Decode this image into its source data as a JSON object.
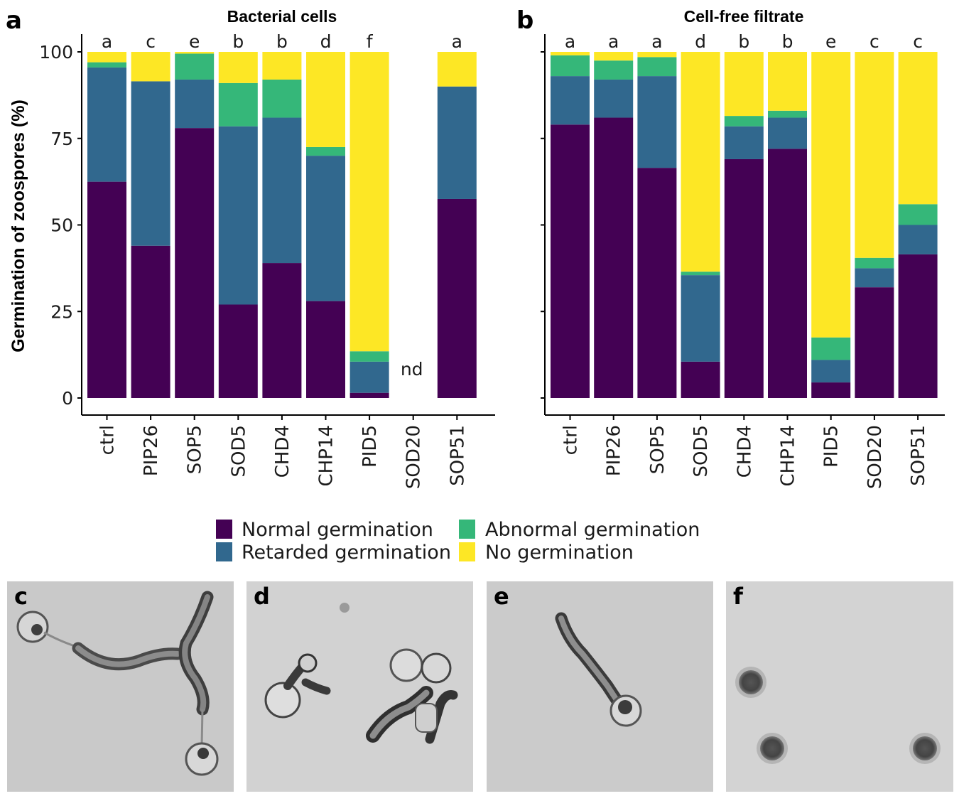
{
  "colors": {
    "normal": "#440154",
    "retarded": "#31688E",
    "abnormal": "#35B779",
    "none": "#FDE725"
  },
  "ylabel": "Germination of zoospores (%)",
  "legend": {
    "items": [
      {
        "key": "normal",
        "label": "Normal germination"
      },
      {
        "key": "abnormal",
        "label": "Abnormal germination"
      },
      {
        "key": "retarded",
        "label": "Retarded germination"
      },
      {
        "key": "none",
        "label": "No germination"
      }
    ]
  },
  "micrographs": [
    {
      "letter": "c"
    },
    {
      "letter": "d"
    },
    {
      "letter": "e"
    },
    {
      "letter": "f"
    }
  ],
  "chart_data": [
    {
      "type": "bar",
      "stacked": true,
      "panel": "a",
      "title": "Bacterial cells",
      "ylabel": "Germination of zoospores (%)",
      "ylim": [
        0,
        100
      ],
      "yticks": [
        0,
        25,
        50,
        75,
        100
      ],
      "categories": [
        "ctrl",
        "PIP26",
        "SOP5",
        "SOD5",
        "CHD4",
        "CHP14",
        "PID5",
        "SOD20",
        "SOP51"
      ],
      "significance": [
        "a",
        "c",
        "e",
        "b",
        "b",
        "d",
        "f",
        "",
        "a"
      ],
      "annotations": [
        {
          "category": "SOD20",
          "text": "nd"
        }
      ],
      "series": [
        {
          "name": "Normal germination",
          "key": "normal",
          "values": [
            62.5,
            44,
            78,
            27,
            39,
            28,
            1.5,
            null,
            57.5
          ]
        },
        {
          "name": "Retarded germination",
          "key": "retarded",
          "values": [
            33,
            47.5,
            14,
            51.5,
            42,
            42,
            9,
            null,
            32.5
          ]
        },
        {
          "name": "Abnormal germination",
          "key": "abnormal",
          "values": [
            1.5,
            0,
            7.5,
            12.5,
            11,
            2.5,
            3,
            null,
            0
          ]
        },
        {
          "name": "No germination",
          "key": "none",
          "values": [
            3,
            8.5,
            0.5,
            9,
            8,
            27.5,
            86.5,
            null,
            10
          ]
        }
      ]
    },
    {
      "type": "bar",
      "stacked": true,
      "panel": "b",
      "title": "Cell-free filtrate",
      "ylim": [
        0,
        100
      ],
      "yticks": [
        0,
        25,
        50,
        75,
        100
      ],
      "categories": [
        "ctrl",
        "PIP26",
        "SOP5",
        "SOD5",
        "CHD4",
        "CHP14",
        "PID5",
        "SOD20",
        "SOP51"
      ],
      "significance": [
        "a",
        "a",
        "a",
        "d",
        "b",
        "b",
        "e",
        "c",
        "c"
      ],
      "series": [
        {
          "name": "Normal germination",
          "key": "normal",
          "values": [
            79,
            81,
            66.5,
            10.5,
            69,
            72,
            4.5,
            32,
            41.5
          ]
        },
        {
          "name": "Retarded germination",
          "key": "retarded",
          "values": [
            14,
            11,
            26.5,
            25,
            9.5,
            9,
            6.5,
            5.5,
            8.5
          ]
        },
        {
          "name": "Abnormal germination",
          "key": "abnormal",
          "values": [
            6,
            5.5,
            5.5,
            1,
            3,
            2,
            6.5,
            3,
            6
          ]
        },
        {
          "name": "No germination",
          "key": "none",
          "values": [
            1,
            2.5,
            1.5,
            63.5,
            18.5,
            17,
            82.5,
            59.5,
            44
          ]
        }
      ]
    }
  ]
}
